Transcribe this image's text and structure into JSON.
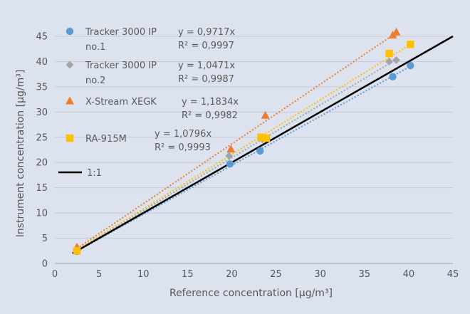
{
  "chart_data": {
    "type": "scatter",
    "xlabel": "Reference concentration [µg/m³]",
    "ylabel": "Instrument concentration [µg/m³]",
    "xlim": [
      0,
      45
    ],
    "ylim": [
      0,
      45
    ],
    "x_ticks": [
      0,
      5,
      10,
      15,
      20,
      25,
      30,
      35,
      40,
      45
    ],
    "y_ticks": [
      0,
      5,
      10,
      15,
      20,
      25,
      30,
      35,
      40,
      45
    ],
    "grid": "horizontal",
    "legend_position": "top-left",
    "reference_line": {
      "name": "1:1",
      "slope": 1,
      "color": "#000000"
    },
    "series": [
      {
        "name_lines": [
          "Tracker 3000 IP",
          "no.1"
        ],
        "marker": "circle",
        "color": "#5b9bd5",
        "trend_slope": 0.9717,
        "equation": "y = 0,9717x",
        "r2": "R² = 0,9997",
        "points": [
          [
            2.5,
            2.4
          ],
          [
            19.8,
            19.7
          ],
          [
            23.2,
            22.3
          ],
          [
            38.2,
            37.0
          ],
          [
            40.2,
            39.2
          ]
        ]
      },
      {
        "name_lines": [
          "Tracker 3000 IP",
          "no.2"
        ],
        "marker": "diamond",
        "color": "#a5a5a5",
        "trend_slope": 1.0471,
        "equation": "y = 1,0471x",
        "r2": "R² = 0,9987",
        "points": [
          [
            2.5,
            2.6
          ],
          [
            19.7,
            21.3
          ],
          [
            23.5,
            24.6
          ],
          [
            37.8,
            40.0
          ],
          [
            38.6,
            40.3
          ]
        ]
      },
      {
        "name_lines": [
          "X-Stream XEGK"
        ],
        "marker": "triangle",
        "color": "#ed7d31",
        "trend_slope": 1.1834,
        "equation": "y = 1,1834x",
        "r2": "R² = 0,9982",
        "points": [
          [
            2.5,
            3.2
          ],
          [
            19.9,
            22.6
          ],
          [
            23.8,
            29.3
          ],
          [
            38.2,
            45.2
          ],
          [
            38.6,
            45.8
          ]
        ]
      },
      {
        "name_lines": [
          "RA-915M"
        ],
        "marker": "square",
        "color": "#ffc000",
        "trend_slope": 1.0796,
        "equation": "y = 1,0796x",
        "r2": "R² = 0,9993",
        "points": [
          [
            2.5,
            2.5
          ],
          [
            23.3,
            25.0
          ],
          [
            23.9,
            24.8
          ],
          [
            37.8,
            41.6
          ],
          [
            40.2,
            43.4
          ]
        ]
      }
    ]
  }
}
